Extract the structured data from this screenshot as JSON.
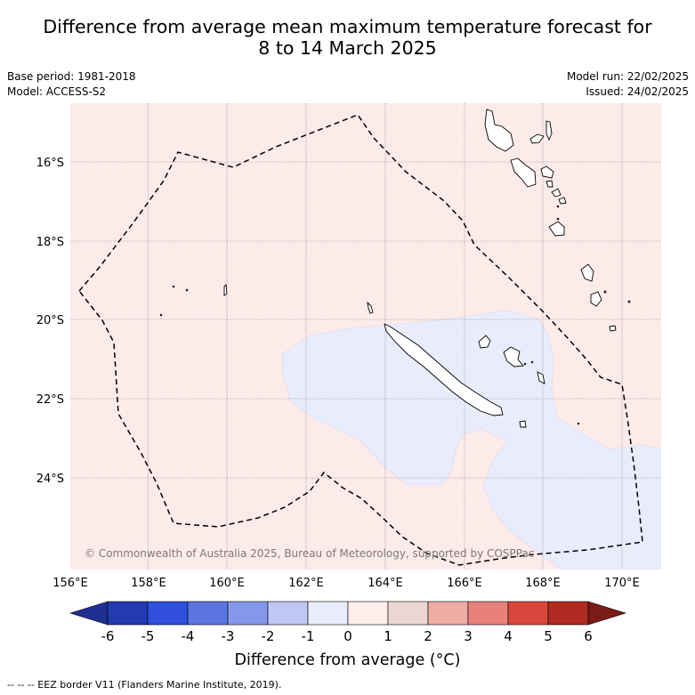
{
  "title_line1": "Difference from average mean maximum temperature forecast for",
  "title_line2": "8 to 14 March 2025",
  "meta_left": {
    "base_period": "Base period: 1981-2018",
    "model": "Model: ACCESS-S2"
  },
  "meta_right": {
    "model_run": "Model run: 22/02/2025",
    "issued": "Issued: 24/02/2025"
  },
  "lat_labels": [
    "16°S",
    "18°S",
    "20°S",
    "22°S",
    "24°S"
  ],
  "lon_labels": [
    "156°E",
    "158°E",
    "160°E",
    "162°E",
    "164°E",
    "166°E",
    "168°E",
    "170°E"
  ],
  "copyright": "© Commonwealth of Australia 2025, Bureau of Meteorology, supported by COSPPac",
  "colorbar": {
    "ticks": [
      "-6",
      "-5",
      "-4",
      "-3",
      "-2",
      "-1",
      "0",
      "1",
      "2",
      "3",
      "4",
      "5",
      "6"
    ],
    "colors": [
      "#1e2f92",
      "#233ab0",
      "#2f4fdc",
      "#5a74e2",
      "#8597ea",
      "#bfc7f3",
      "#e8ecfb",
      "#fdeeea",
      "#ecd6d3",
      "#efaba4",
      "#e8817a",
      "#d9473c",
      "#b02a21",
      "#7a1b16"
    ],
    "title": "Difference from average (°C)"
  },
  "map_colors": {
    "warm": "#fcebe9",
    "cool": "#e9ecfc"
  },
  "footnote": "--  --  -- EEZ border V11 (Flanders Marine Institute, 2019)."
}
